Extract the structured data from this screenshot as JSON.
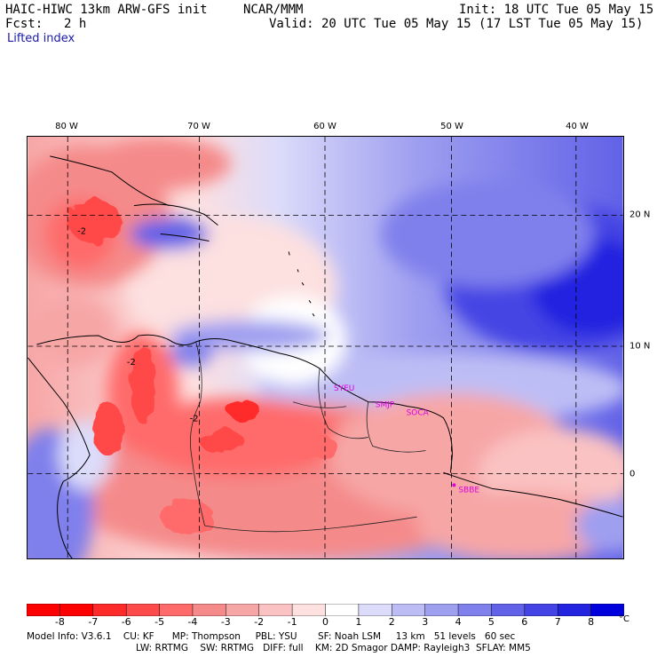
{
  "header": {
    "model": "HAIC-HIWC 13km ARW-GFS init",
    "org": "NCAR/MMM",
    "init": "Init: 18 UTC Tue 05 May 15",
    "fcst_label": "Fcst:",
    "fcst_value": "2 h",
    "valid": "Valid: 20 UTC Tue 05 May 15 (17 LST Tue 05 May 15)",
    "field": "Lifted index"
  },
  "map": {
    "lon_labels": [
      "80 W",
      "70 W",
      "60 W",
      "50 W",
      "40 W"
    ],
    "lat_labels": [
      "20 N",
      "10 N",
      "0"
    ],
    "contour_labels": [
      "-2",
      "-2",
      "-2"
    ],
    "stations": [
      "SYEU",
      "SMJP",
      "SOCA",
      "SBBE"
    ]
  },
  "colorbar": {
    "ticks": [
      "-8",
      "-7",
      "-6",
      "-5",
      "-4",
      "-3",
      "-2",
      "-1",
      "0",
      "1",
      "2",
      "3",
      "4",
      "5",
      "6",
      "7",
      "8"
    ],
    "unit": "°C",
    "colors": [
      "#ff0000",
      "#ff2a2a",
      "#ff4a4a",
      "#ff6a6a",
      "#f58a8a",
      "#f7a6a6",
      "#fac2c2",
      "#fde0e0",
      "#ffffff",
      "#dcdcfa",
      "#bdbdf5",
      "#9f9ff0",
      "#8080ec",
      "#6262e8",
      "#4444e4",
      "#2424e0",
      "#0000dc"
    ]
  },
  "footer": {
    "line1": "Model Info: V3.6.1    CU: KF      MP: Thompson     PBL: YSU       SF: Noah LSM     13 km   51 levels   60 sec",
    "line2": "LW: RRTMG    SW: RRTMG   DIFF: full    KM: 2D Smagor DAMP: Rayleigh3  SFLAY: MM5"
  }
}
